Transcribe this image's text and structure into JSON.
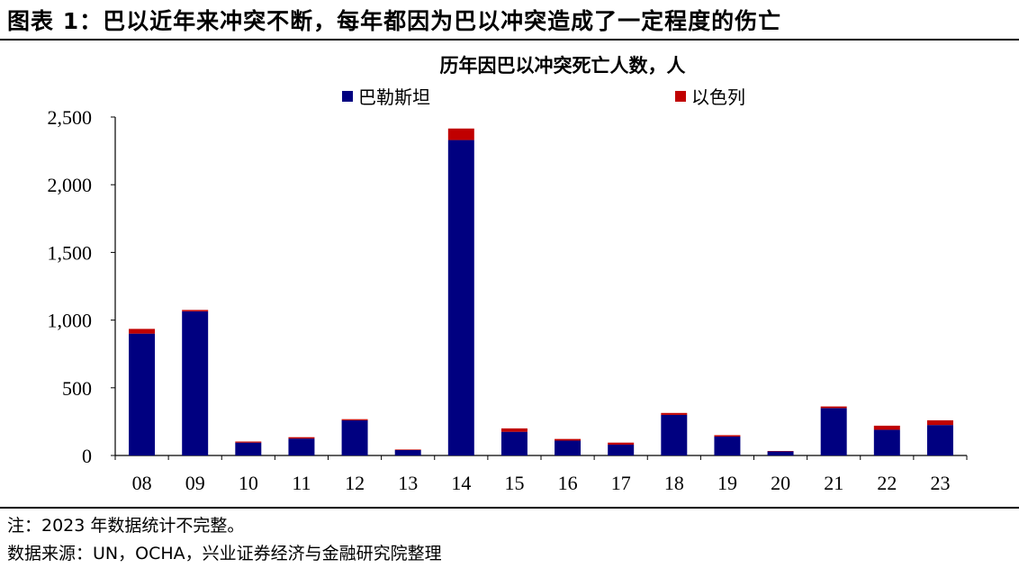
{
  "figure": {
    "title": "图表 1：巴以近年来冲突不断，每年都因为巴以冲突造成了一定程度的伤亡",
    "note": "注：2023 年数据统计不完整。",
    "source": "数据来源：UN，OCHA，兴业证券经济与金融研究院整理"
  },
  "chart_data": {
    "type": "bar",
    "stacked": true,
    "title": "历年因巴以冲突死亡人数，人",
    "categories": [
      "08",
      "09",
      "10",
      "11",
      "12",
      "13",
      "14",
      "15",
      "16",
      "17",
      "18",
      "19",
      "20",
      "21",
      "22",
      "23"
    ],
    "series": [
      {
        "name": "巴勒斯坦",
        "color": "#000080",
        "values": [
          900,
          1065,
          95,
          125,
          260,
          40,
          2330,
          175,
          110,
          80,
          300,
          140,
          30,
          350,
          190,
          225
        ]
      },
      {
        "name": "以色列",
        "color": "#c00000",
        "values": [
          35,
          10,
          8,
          10,
          8,
          4,
          85,
          25,
          12,
          15,
          14,
          10,
          3,
          12,
          30,
          35
        ]
      }
    ],
    "ylim": [
      0,
      2500
    ],
    "yticks": [
      0,
      500,
      1000,
      1500,
      2000,
      2500
    ],
    "ytick_labels": [
      "0",
      "500",
      "1,000",
      "1,500",
      "2,000",
      "2,500"
    ],
    "grid": false,
    "legend_position": "top"
  }
}
